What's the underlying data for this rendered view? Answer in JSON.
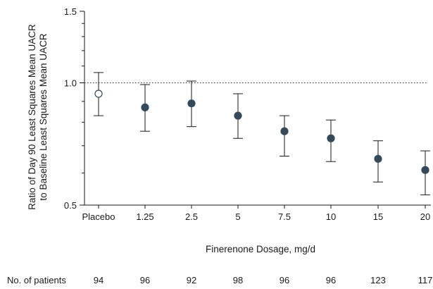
{
  "chart_data": {
    "type": "scatter",
    "title": "",
    "xlabel": "Finerenone Dosage, mg/d",
    "ylabel_lines": [
      "Ratio of Day 90 Least Squares Mean UACR",
      "to Baseline Least Squares Mean UACR"
    ],
    "y_scale": "log",
    "ylim": [
      0.5,
      1.5
    ],
    "y_ticks": [
      {
        "value": 0.5,
        "label": "0.5"
      },
      {
        "value": 1.0,
        "label": "1.0"
      },
      {
        "value": 1.5,
        "label": "1.5"
      }
    ],
    "reference_line": 1.0,
    "categories": [
      "Placebo",
      "1.25",
      "2.5",
      "5",
      "7.5",
      "10",
      "15",
      "20"
    ],
    "values": [
      0.94,
      0.87,
      0.89,
      0.83,
      0.76,
      0.73,
      0.65,
      0.61
    ],
    "ci_lower": [
      0.83,
      0.76,
      0.78,
      0.73,
      0.66,
      0.64,
      0.57,
      0.53
    ],
    "ci_upper": [
      1.06,
      0.99,
      1.01,
      0.94,
      0.83,
      0.81,
      0.72,
      0.68
    ],
    "marker_fill": [
      "#ffffff",
      "#34495a",
      "#34495a",
      "#34495a",
      "#34495a",
      "#34495a",
      "#34495a",
      "#34495a"
    ],
    "patients_label": "No. of patients",
    "patients": [
      "94",
      "96",
      "92",
      "98",
      "96",
      "96",
      "123",
      "117"
    ]
  },
  "colors": {
    "marker": "#34495a",
    "axis": "#1a1a1a",
    "reference": "#333333"
  }
}
